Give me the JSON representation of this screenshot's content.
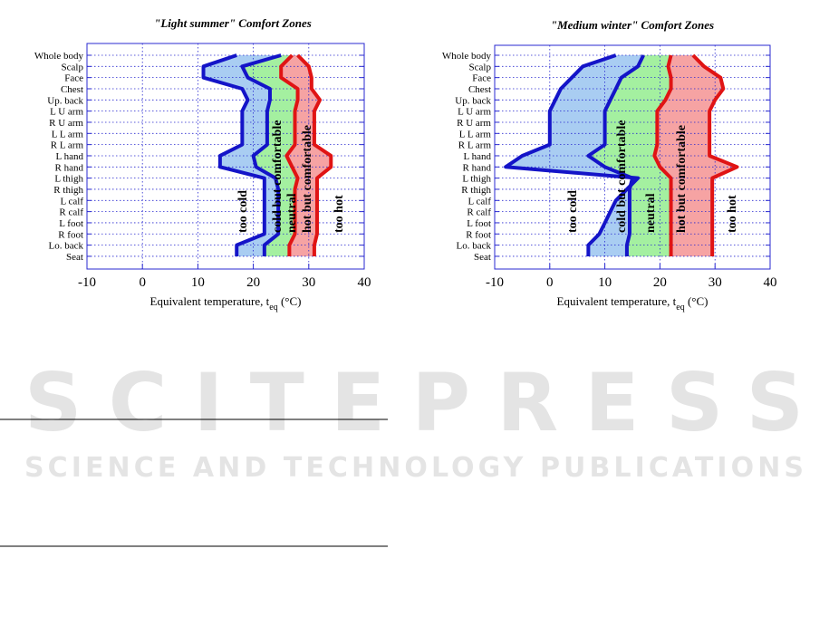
{
  "watermark": {
    "title": "SCITEPRESS",
    "subtitle": "SCIENCE AND TECHNOLOGY PUBLICATIONS"
  },
  "chart_data": [
    {
      "type": "comfort-zones",
      "title": "\"Light summer\" Comfort Zones",
      "x_label": "Equivalent temperature, t",
      "x_label_sub": "eq",
      "x_label_end": " (°C)",
      "categories": [
        "Whole body",
        "Scalp",
        "Face",
        "Chest",
        "Up. back",
        "L U arm",
        "R U arm",
        "L L arm",
        "R L arm",
        "L hand",
        "R hand",
        "L thigh",
        "R thigh",
        "L calf",
        "R calf",
        "L foot",
        "R foot",
        "Lo. back",
        "Seat"
      ],
      "xlim": [
        -10,
        40
      ],
      "xticks": [
        -10,
        0,
        10,
        20,
        30,
        40
      ],
      "grid": true,
      "series": [
        {
          "color": "#1414c8",
          "values": [
            17,
            11,
            11,
            18,
            19,
            18,
            18,
            18,
            18,
            14,
            14,
            22,
            22,
            22,
            22,
            22,
            22,
            17,
            17
          ]
        },
        {
          "color": "#1414c8",
          "values": [
            25,
            18,
            19,
            23,
            23,
            22.5,
            22.5,
            22.5,
            22.5,
            20,
            20.5,
            24,
            24.5,
            24.5,
            24.5,
            24.5,
            24.5,
            22,
            22
          ]
        },
        {
          "color": "#e01414",
          "values": [
            27,
            25,
            25,
            28,
            28,
            27.5,
            27.5,
            27.5,
            27.5,
            26,
            27,
            28,
            27.5,
            27.5,
            27.5,
            27.5,
            27.5,
            26.5,
            26.5
          ]
        },
        {
          "color": "#e01414",
          "values": [
            28,
            30,
            30.5,
            30.5,
            32,
            31,
            31,
            31,
            31,
            34,
            34,
            31.5,
            31.5,
            31.5,
            31.5,
            31.5,
            31.5,
            31,
            31
          ]
        }
      ],
      "zones": [
        {
          "label": "too cold",
          "color": null
        },
        {
          "label": "cold but comfortable",
          "color": "#a9cdf2"
        },
        {
          "label": "neutral",
          "color": "#a4f0a0"
        },
        {
          "label": "hot but comfortable",
          "color": "#f6a3a3"
        },
        {
          "label": "too hot",
          "color": null
        }
      ]
    },
    {
      "type": "comfort-zones",
      "title": "\"Medium winter\" Comfort Zones",
      "x_label": "Equivalent temperature, t",
      "x_label_sub": "eq",
      "x_label_end": " (°C)",
      "categories": [
        "Whole body",
        "Scalp",
        "Face",
        "Chest",
        "Up. back",
        "L U arm",
        "R U arm",
        "L L arm",
        "R L arm",
        "L hand",
        "R hand",
        "L thigh",
        "R thigh",
        "L calf",
        "R calf",
        "L foot",
        "R foot",
        "Lo. back",
        "Seat"
      ],
      "xlim": [
        -10,
        40
      ],
      "xticks": [
        -10,
        0,
        10,
        20,
        30,
        40
      ],
      "grid": true,
      "series": [
        {
          "color": "#1414c8",
          "values": [
            12,
            6,
            4,
            2,
            1,
            0,
            0,
            0,
            0,
            -5,
            -8,
            16,
            14,
            12,
            11,
            10,
            9,
            7,
            7
          ]
        },
        {
          "color": "#1414c8",
          "values": [
            17,
            16,
            13,
            12,
            11,
            10,
            10,
            10,
            10,
            7,
            10,
            15,
            14.5,
            14.5,
            14.5,
            14.5,
            14.5,
            14,
            14
          ]
        },
        {
          "color": "#e01414",
          "values": [
            22,
            21.5,
            22,
            22,
            21,
            19.5,
            19.5,
            19.5,
            19.5,
            19,
            20,
            22,
            22,
            22,
            22,
            22,
            22,
            22,
            22
          ]
        },
        {
          "color": "#e01414",
          "values": [
            26,
            28,
            31,
            31.5,
            30,
            29,
            29,
            29,
            29,
            29,
            34,
            29.5,
            29.5,
            29.5,
            29.5,
            29.5,
            29.5,
            29.5,
            29.5
          ]
        }
      ],
      "zones": [
        {
          "label": "too cold",
          "color": null
        },
        {
          "label": "cold but comfortable",
          "color": "#a9cdf2"
        },
        {
          "label": "neutral",
          "color": "#a4f0a0"
        },
        {
          "label": "hot but comfortable",
          "color": "#f6a3a3"
        },
        {
          "label": "too hot",
          "color": null
        }
      ]
    }
  ]
}
